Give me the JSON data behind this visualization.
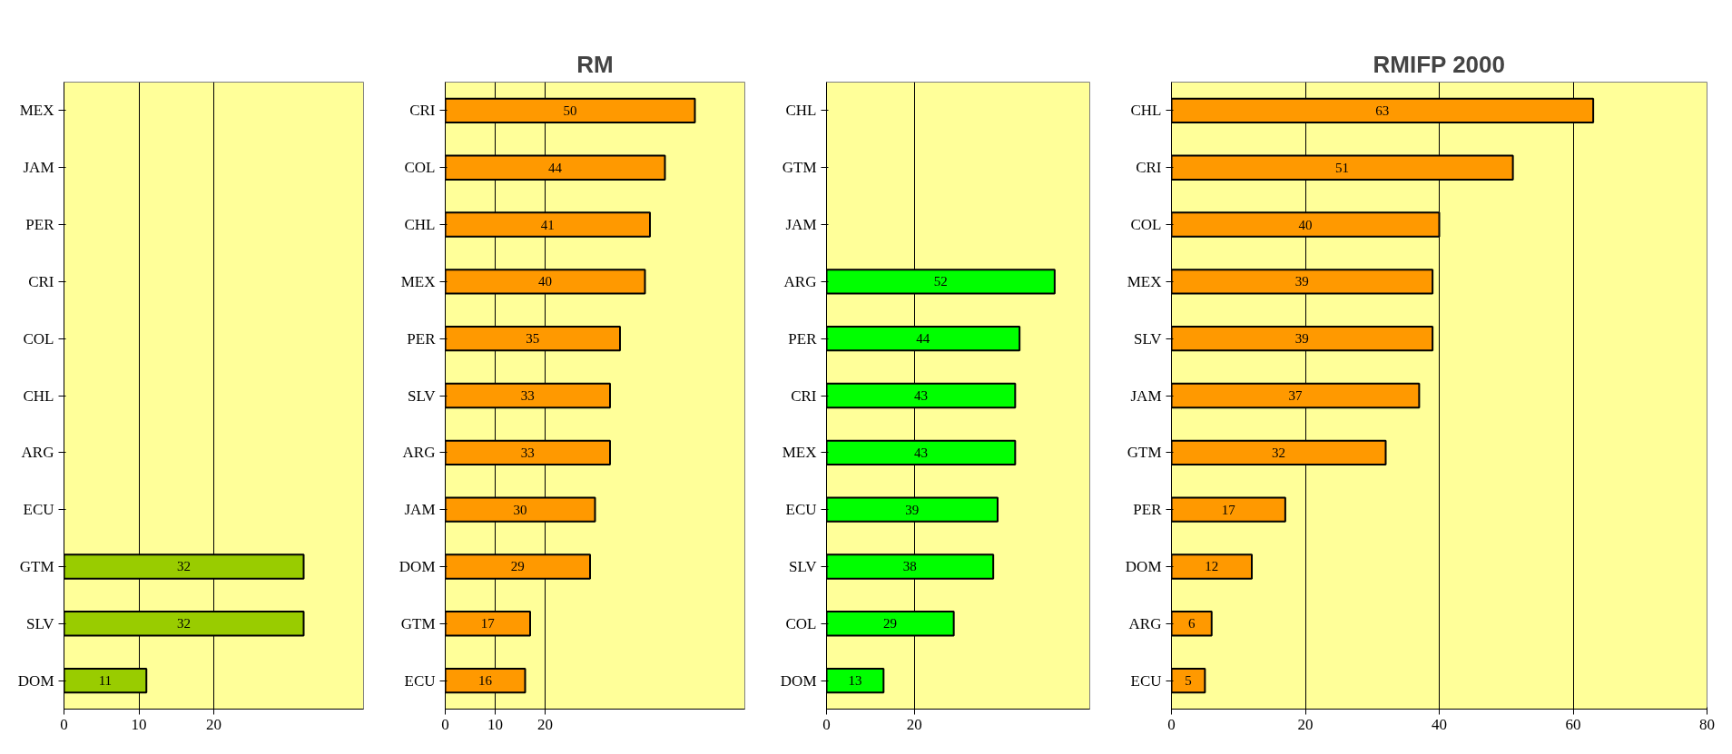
{
  "chart_data": [
    {
      "type": "bar",
      "orientation": "horizontal",
      "categories": [
        "MEX",
        "JAM",
        "PER",
        "CRI",
        "COL",
        "CHL",
        "ARG",
        "ECU",
        "GTM",
        "SLV",
        "DOM"
      ],
      "values": [
        null,
        null,
        null,
        null,
        null,
        null,
        null,
        null,
        32,
        32,
        11
      ],
      "value_labels": [
        null,
        null,
        null,
        null,
        null,
        null,
        null,
        null,
        "32",
        "32",
        "11"
      ],
      "color": "#99cc00",
      "xlim": [
        0,
        40
      ],
      "xticks": [
        0,
        10,
        20
      ],
      "grid": "x"
    },
    {
      "type": "bar",
      "orientation": "horizontal",
      "title": "RM",
      "categories": [
        "CRI",
        "COL",
        "CHL",
        "MEX",
        "PER",
        "SLV",
        "ARG",
        "JAM",
        "DOM",
        "GTM",
        "ECU"
      ],
      "values": [
        50,
        44,
        41,
        40,
        35,
        33,
        33,
        30,
        29,
        17,
        16
      ],
      "value_labels": [
        "50",
        "44",
        "41",
        "40",
        "35",
        "33",
        "33",
        "30",
        "29",
        "17",
        "16"
      ],
      "color": "#ff9900",
      "xlim": [
        0,
        60
      ],
      "xticks": [
        0,
        10,
        20
      ],
      "grid": "x"
    },
    {
      "type": "bar",
      "orientation": "horizontal",
      "categories": [
        "CHL",
        "GTM",
        "JAM",
        "ARG",
        "PER",
        "CRI",
        "MEX",
        "ECU",
        "SLV",
        "COL",
        "DOM"
      ],
      "values": [
        null,
        null,
        null,
        52,
        44,
        43,
        43,
        39,
        38,
        29,
        13
      ],
      "value_labels": [
        null,
        null,
        null,
        "52",
        "44",
        "43",
        "43",
        "39",
        "38",
        "29",
        "13"
      ],
      "color": "#00ff00",
      "xlim": [
        0,
        60
      ],
      "xticks": [
        0,
        20
      ],
      "grid": "x"
    },
    {
      "type": "bar",
      "orientation": "horizontal",
      "title": "RMIFP 2000",
      "categories": [
        "CHL",
        "CRI",
        "COL",
        "MEX",
        "SLV",
        "JAM",
        "GTM",
        "PER",
        "DOM",
        "ARG",
        "ECU"
      ],
      "values": [
        63,
        51,
        40,
        39,
        39,
        37,
        32,
        17,
        12,
        6,
        5
      ],
      "value_labels": [
        "63",
        "51",
        "40",
        "39",
        "39",
        "37",
        "32",
        "17",
        "12",
        "6",
        "5"
      ],
      "color": "#ff9900",
      "xlim": [
        0,
        80
      ],
      "xticks": [
        0,
        20,
        40,
        60,
        80
      ],
      "grid": "x"
    }
  ]
}
